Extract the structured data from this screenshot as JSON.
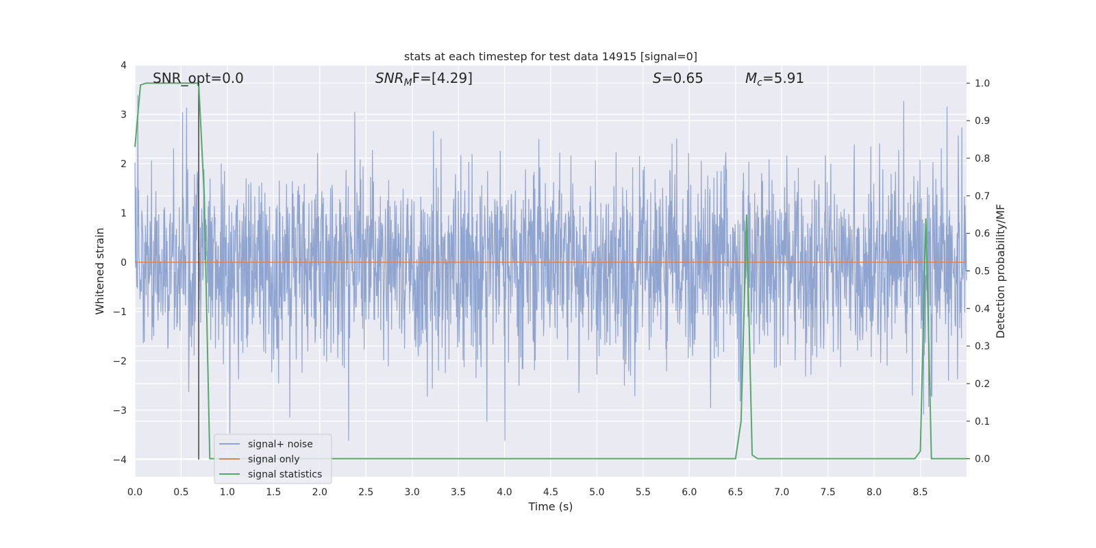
{
  "chart_data": {
    "type": "line",
    "title": "stats at each timestep for test data 14915 [signal=0]",
    "xlabel": "Time (s)",
    "ylabel": "Whitened strain",
    "y2label": "Detection probability/MF",
    "xlim": [
      0.0,
      9.0
    ],
    "ylim": [
      -4.35,
      4.0
    ],
    "y2lim": [
      -0.048,
      1.048
    ],
    "xticks": [
      "0.0",
      "0.5",
      "1.0",
      "1.5",
      "2.0",
      "2.5",
      "3.0",
      "3.5",
      "4.0",
      "4.5",
      "5.0",
      "5.5",
      "6.0",
      "6.5",
      "7.0",
      "7.5",
      "8.0",
      "8.5"
    ],
    "yticks": [
      "4",
      "3",
      "2",
      "1",
      "0",
      "−1",
      "−2",
      "−3",
      "−4"
    ],
    "y2ticks": [
      "1.0",
      "0.9",
      "0.8",
      "0.7",
      "0.6",
      "0.5",
      "0.4",
      "0.3",
      "0.2",
      "0.1",
      "0.0"
    ],
    "grid": true,
    "legend_position": "lower-left",
    "annotations": {
      "snr_opt": "SNR_opt=0.0",
      "snr_mf_base": "SNR",
      "snr_mf_sub": "M",
      "snr_mf_rest": "F=[4.29]",
      "s_sym": "S",
      "s_val": "=0.65",
      "mc_sym": "M",
      "mc_sub": "c",
      "mc_val": "=5.91"
    },
    "vline_x": 0.69,
    "series": [
      {
        "name": "signal+ noise",
        "color": "#8fa4cf",
        "axis": "left",
        "description_of_shape": "noise",
        "noise_std": 1.0,
        "noise_x_step": 0.00390625
      },
      {
        "name": "signal only",
        "color": "#dd8452",
        "axis": "left",
        "x": [
          0.0,
          9.0
        ],
        "y": [
          0.0,
          0.0
        ]
      },
      {
        "name": "signal statistics",
        "color": "#55a868",
        "axis": "right",
        "x": [
          0.0,
          0.06,
          0.12,
          0.69,
          0.75,
          0.81,
          6.5,
          6.56,
          6.62,
          6.68,
          6.74,
          8.44,
          8.5,
          8.56,
          8.62,
          9.0
        ],
        "y": [
          0.83,
          0.995,
          1.0,
          1.0,
          0.7,
          0.0,
          0.0,
          0.1,
          0.65,
          0.01,
          0.0,
          0.0,
          0.02,
          0.64,
          0.0,
          0.0
        ]
      }
    ]
  }
}
